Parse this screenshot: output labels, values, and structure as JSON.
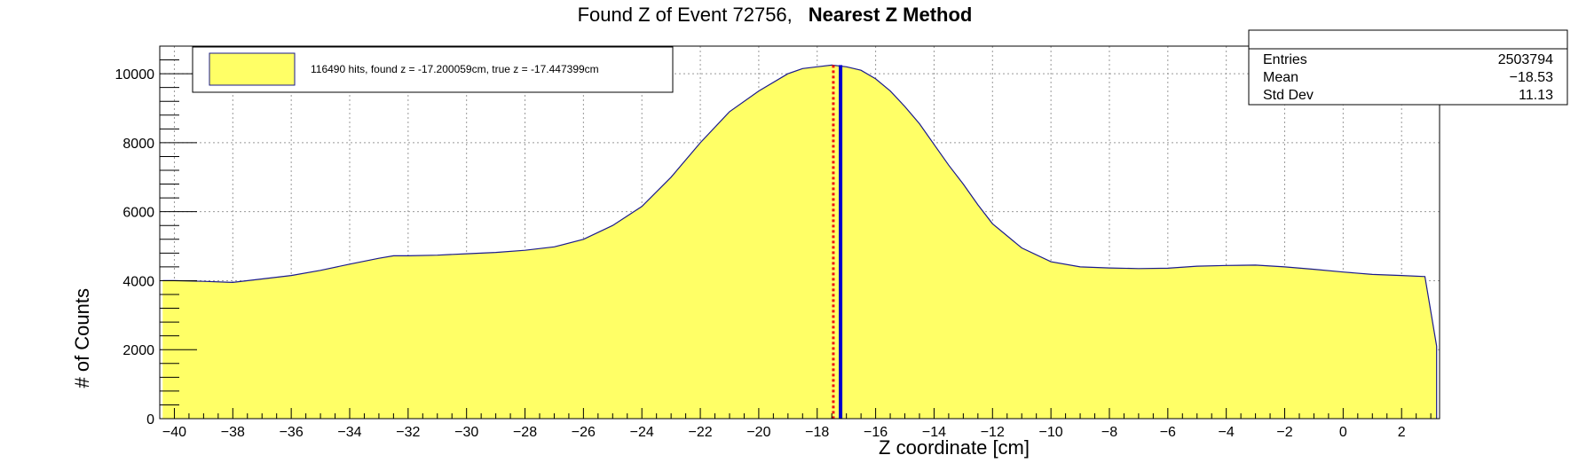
{
  "chart_data": {
    "type": "area",
    "title": "Found Z of Event 72756,",
    "title_method": "Nearest Z Method",
    "xlabel": "Z coordinate [cm]",
    "ylabel": "# of Counts",
    "xlim": [
      -40.5,
      3.3
    ],
    "ylim": [
      0,
      10800
    ],
    "x_ticks": [
      -40,
      -38,
      -36,
      -34,
      -32,
      -30,
      -28,
      -26,
      -24,
      -22,
      -20,
      -18,
      -16,
      -14,
      -12,
      -10,
      -8,
      -6,
      -4,
      -2,
      0,
      2
    ],
    "y_ticks": [
      0,
      2000,
      4000,
      6000,
      8000,
      10000
    ],
    "grid": true,
    "fill_color": "#ffff66",
    "line_color": "#1a1a8c",
    "series": [
      {
        "x": [
          -40.4,
          -40.0,
          -39.0,
          -38.0,
          -37.0,
          -36.0,
          -35.0,
          -34.0,
          -33.0,
          -32.5,
          -32.0,
          -31.0,
          -30.0,
          -29.0,
          -28.0,
          -27.0,
          -26.0,
          -25.0,
          -24.0,
          -23.0,
          -22.0,
          -21.0,
          -20.0,
          -19.0,
          -18.5,
          -18.0,
          -17.5,
          -17.0,
          -16.5,
          -16.0,
          -15.5,
          -15.0,
          -14.5,
          -14.0,
          -13.5,
          -13.0,
          -12.5,
          -12.0,
          -11.0,
          -10.0,
          -9.0,
          -8.0,
          -7.0,
          -6.0,
          -5.0,
          -4.0,
          -3.0,
          -2.0,
          -1.0,
          0.0,
          1.0,
          2.0,
          2.8,
          3.2
        ],
        "y": [
          4000,
          4000,
          3980,
          3950,
          4050,
          4150,
          4300,
          4480,
          4650,
          4720,
          4720,
          4740,
          4780,
          4820,
          4880,
          4980,
          5200,
          5600,
          6150,
          7000,
          8000,
          8900,
          9500,
          10000,
          10150,
          10200,
          10250,
          10200,
          10100,
          9850,
          9500,
          9050,
          8550,
          7950,
          7350,
          6800,
          6200,
          5650,
          4950,
          4550,
          4400,
          4370,
          4350,
          4360,
          4420,
          4440,
          4450,
          4400,
          4330,
          4250,
          4180,
          4150,
          4120,
          2100
        ]
      }
    ],
    "markers": [
      {
        "name": "found z",
        "value": -17.2,
        "color": "#0000cc",
        "style": "solid"
      },
      {
        "name": "true z",
        "value": -17.447399,
        "color": "#ee1111",
        "style": "dotted"
      }
    ],
    "legend": {
      "position": "top-left",
      "text": "116490 hits, found z = -17.200059cm, true z = -17.447399cm"
    },
    "stats": {
      "position": "top-right",
      "rows": [
        {
          "label": "Entries",
          "value": "2503794"
        },
        {
          "label": "Mean",
          "value": "−18.53"
        },
        {
          "label": "Std Dev",
          "value": "11.13"
        }
      ]
    }
  }
}
